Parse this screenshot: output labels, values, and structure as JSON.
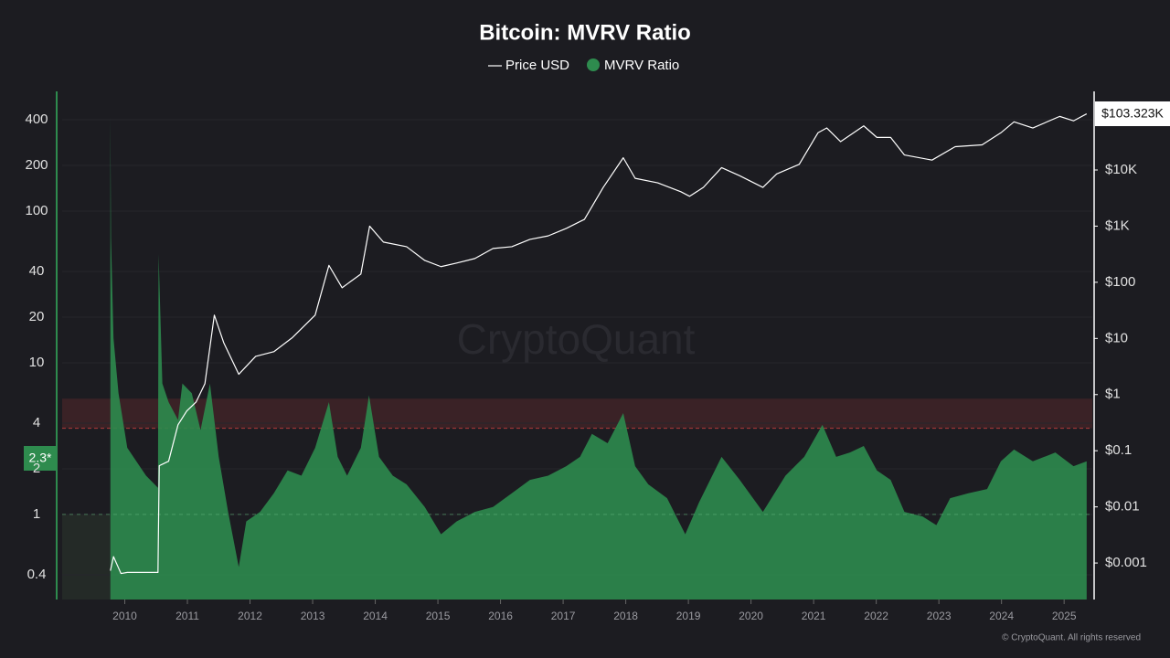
{
  "chart_data": {
    "type": "dual-log-area-line",
    "title": "Bitcoin: MVRV Ratio",
    "watermark": "CryptoQuant",
    "footer": "© CryptoQuant. All rights reserved",
    "current_mvrv_label": "2.3*",
    "current_price_label": "$103.323K",
    "xlim": [
      2009.0,
      2025.45
    ],
    "xticks": [
      2010,
      2011,
      2012,
      2013,
      2014,
      2015,
      2016,
      2017,
      2018,
      2019,
      2020,
      2021,
      2022,
      2023,
      2024,
      2025
    ],
    "ylim": [
      0.275,
      615
    ],
    "yticks": [
      0.4,
      1,
      2,
      4,
      10,
      20,
      40,
      100,
      200,
      400
    ],
    "y_log": true,
    "y2lim": [
      0.000224,
      251000
    ],
    "y2ticks": [
      {
        "value": 0.001,
        "label": "$0.001"
      },
      {
        "value": 0.01,
        "label": "$0.01"
      },
      {
        "value": 0.1,
        "label": "$0.1"
      },
      {
        "value": 1,
        "label": "$1"
      },
      {
        "value": 10,
        "label": "$10"
      },
      {
        "value": 100,
        "label": "$100"
      },
      {
        "value": 1000,
        "label": "$1K"
      },
      {
        "value": 10000,
        "label": "$10K"
      }
    ],
    "y2_log": true,
    "grid": true,
    "reference_line": 1,
    "threshold_band": [
      3.7,
      5.8
    ],
    "series": [
      {
        "name": "Price USD",
        "color": "#ffffff",
        "axis": "y2",
        "kind": "line",
        "x": [
          2009.77,
          2009.82,
          2009.94,
          2010.04,
          2010.53,
          2010.55,
          2010.7,
          2010.85,
          2010.99,
          2011.14,
          2011.28,
          2011.43,
          2011.58,
          2011.82,
          2012.09,
          2012.38,
          2012.67,
          2013.04,
          2013.26,
          2013.47,
          2013.77,
          2013.91,
          2014.13,
          2014.5,
          2014.79,
          2015.05,
          2015.3,
          2015.59,
          2015.88,
          2016.18,
          2016.47,
          2016.76,
          2017.05,
          2017.34,
          2017.64,
          2017.96,
          2018.15,
          2018.51,
          2018.88,
          2019.02,
          2019.24,
          2019.53,
          2019.82,
          2020.19,
          2020.41,
          2020.77,
          2021.07,
          2021.21,
          2021.43,
          2021.8,
          2022.01,
          2022.23,
          2022.45,
          2022.89,
          2023.26,
          2023.69,
          2023.99,
          2024.2,
          2024.5,
          2024.93,
          2025.15,
          2025.36
        ],
        "values": [
          0.00073,
          0.0013,
          0.00065,
          0.00068,
          0.00068,
          0.054,
          0.065,
          0.29,
          0.51,
          0.74,
          1.57,
          26,
          8.4,
          2.3,
          4.8,
          5.8,
          10.2,
          26,
          200,
          80,
          140,
          1000,
          520,
          430,
          245,
          190,
          220,
          265,
          400,
          430,
          580,
          670,
          910,
          1320,
          4900,
          16500,
          7100,
          5900,
          4100,
          3400,
          4900,
          11000,
          7900,
          4900,
          8500,
          12600,
          46000,
          56000,
          32000,
          61000,
          38000,
          38000,
          18500,
          15000,
          26000,
          28000,
          46000,
          72000,
          56000,
          90000,
          75000,
          100000
        ]
      },
      {
        "name": "MVRV Ratio",
        "color": "#2e8b4e",
        "axis": "y",
        "kind": "area",
        "x": [
          2009.77,
          2009.78,
          2009.82,
          2009.9,
          2010.04,
          2010.34,
          2010.53,
          2010.54,
          2010.6,
          2010.7,
          2010.85,
          2010.92,
          2011.07,
          2011.21,
          2011.36,
          2011.5,
          2011.65,
          2011.82,
          2011.94,
          2012.16,
          2012.38,
          2012.6,
          2012.82,
          2013.04,
          2013.26,
          2013.4,
          2013.55,
          2013.77,
          2013.9,
          2014.06,
          2014.28,
          2014.5,
          2014.79,
          2015.05,
          2015.3,
          2015.59,
          2015.88,
          2016.18,
          2016.47,
          2016.76,
          2017.05,
          2017.27,
          2017.46,
          2017.71,
          2017.96,
          2018.15,
          2018.36,
          2018.66,
          2018.95,
          2019.17,
          2019.53,
          2019.82,
          2020.19,
          2020.55,
          2020.85,
          2021.14,
          2021.36,
          2021.58,
          2021.8,
          2022.01,
          2022.23,
          2022.45,
          2022.74,
          2022.96,
          2023.18,
          2023.47,
          2023.77,
          2023.99,
          2024.2,
          2024.5,
          2024.86,
          2025.15,
          2025.36
        ],
        "values": [
          425,
          66,
          14.5,
          6.3,
          2.75,
          1.8,
          1.5,
          52,
          7.3,
          5.5,
          4.2,
          7.3,
          6.3,
          3.6,
          7.3,
          2.4,
          1.04,
          0.45,
          0.9,
          1.04,
          1.38,
          1.95,
          1.8,
          2.75,
          5.5,
          2.4,
          1.8,
          2.75,
          6.1,
          2.4,
          1.8,
          1.58,
          1.12,
          0.74,
          0.9,
          1.04,
          1.12,
          1.38,
          1.69,
          1.8,
          2.08,
          2.4,
          3.4,
          2.95,
          4.66,
          2.08,
          1.58,
          1.28,
          0.74,
          1.2,
          2.4,
          1.69,
          1.04,
          1.8,
          2.4,
          3.9,
          2.4,
          2.56,
          2.83,
          1.95,
          1.69,
          1.04,
          0.97,
          0.85,
          1.28,
          1.38,
          1.47,
          2.24,
          2.68,
          2.24,
          2.56,
          2.08,
          2.24
        ]
      }
    ]
  }
}
